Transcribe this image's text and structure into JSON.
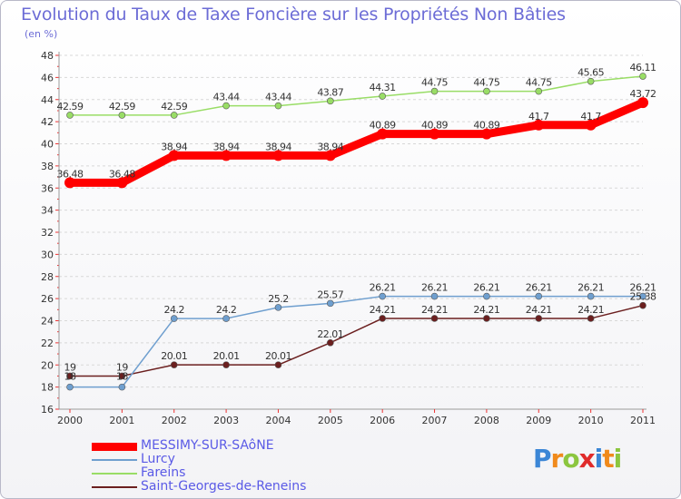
{
  "chart_data": {
    "type": "line",
    "title": "Evolution du Taux de Taxe Foncière sur les Propriétés Non Bâties",
    "subtitle": "(en %)",
    "x": [
      "2000",
      "2001",
      "2002",
      "2003",
      "2004",
      "2005",
      "2006",
      "2007",
      "2008",
      "2009",
      "2010",
      "2011"
    ],
    "ylim": [
      16,
      48
    ],
    "yticks": [
      16,
      18,
      20,
      22,
      24,
      26,
      28,
      30,
      32,
      34,
      36,
      38,
      40,
      42,
      44,
      46,
      48
    ],
    "grid": "horizontal dashed",
    "legend_position": "bottom-left",
    "series": [
      {
        "name": "MESSIMY-SUR-SAôNE",
        "color": "#ff0000",
        "values": [
          36.48,
          36.48,
          38.94,
          38.94,
          38.94,
          38.94,
          40.89,
          40.89,
          40.89,
          41.7,
          41.7,
          43.72
        ],
        "labels": [
          "36.48",
          "36.48",
          "38.94",
          "38.94",
          "38.94",
          "38.94",
          "40.89",
          "40.89",
          "40.89",
          "41.7",
          "41.7",
          "43.72"
        ]
      },
      {
        "name": "Lurcy",
        "color": "#6f9fcf",
        "values": [
          18,
          18,
          24.2,
          24.2,
          25.2,
          25.57,
          26.21,
          26.21,
          26.21,
          26.21,
          26.21,
          26.21
        ],
        "labels": [
          "18",
          "18",
          "24.2",
          "24.2",
          "25.2",
          "25.57",
          "26.21",
          "26.21",
          "26.21",
          "26.21",
          "26.21",
          "26.21"
        ]
      },
      {
        "name": "Fareins",
        "color": "#99dd66",
        "values": [
          42.59,
          42.59,
          42.59,
          43.44,
          43.44,
          43.87,
          44.31,
          44.75,
          44.75,
          44.75,
          45.65,
          46.11
        ],
        "labels": [
          "42.59",
          "42.59",
          "42.59",
          "43.44",
          "43.44",
          "43.87",
          "44.31",
          "44.75",
          "44.75",
          "44.75",
          "45.65",
          "46.11"
        ]
      },
      {
        "name": "Saint-Georges-de-Reneins",
        "color": "#6b1f1f",
        "values": [
          19,
          19,
          20.01,
          20.01,
          20.01,
          22.01,
          24.21,
          24.21,
          24.21,
          24.21,
          24.21,
          25.38
        ],
        "labels": [
          "19",
          "19",
          "20.01",
          "20.01",
          "20.01",
          "22.01",
          "24.21",
          "24.21",
          "24.21",
          "24.21",
          "24.21",
          "25.38"
        ]
      }
    ]
  },
  "logo": {
    "text": "Proxiti",
    "letters": [
      {
        "ch": "P",
        "color": "#3b86d6"
      },
      {
        "ch": "r",
        "color": "#f08a1c"
      },
      {
        "ch": "o",
        "color": "#8cc63f"
      },
      {
        "ch": "x",
        "color": "#e02b2b"
      },
      {
        "ch": "i",
        "color": "#3b86d6"
      },
      {
        "ch": "t",
        "color": "#f08a1c"
      },
      {
        "ch": "i",
        "color": "#8cc63f"
      }
    ]
  }
}
